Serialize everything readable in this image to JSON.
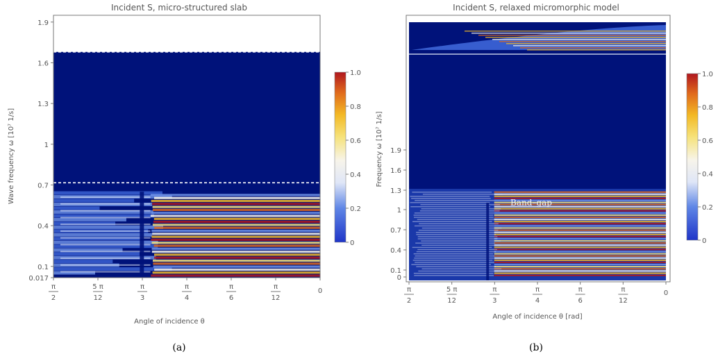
{
  "chart_data": [
    {
      "type": "heatmap",
      "title": "Incident S, micro-structured slab",
      "xlabel": "Angle of incidence θ",
      "ylabel": "Wave frequency  ω [10⁷ 1/s]",
      "caption": "(a)",
      "x_ticks": [
        {
          "num": "π",
          "den": "2",
          "value": 1.5708
        },
        {
          "num": "5 π",
          "den": "12",
          "value": 1.309
        },
        {
          "num": "π",
          "den": "3",
          "value": 1.0472
        },
        {
          "num": "π",
          "den": "4",
          "value": 0.7854
        },
        {
          "num": "π",
          "den": "6",
          "value": 0.5236
        },
        {
          "num": "π",
          "den": "12",
          "value": 0.2618
        },
        {
          "num": "0",
          "den": "",
          "value": 0
        }
      ],
      "xlim": [
        1.5708,
        0
      ],
      "y_ticks": [
        {
          "label": "0.017",
          "value": 0.017
        },
        {
          "label": "0.1",
          "value": 0.1
        },
        {
          "label": "0.4",
          "value": 0.4
        },
        {
          "label": "0.7",
          "value": 0.7
        },
        {
          "label": "1",
          "value": 1.0
        },
        {
          "label": "1.3",
          "value": 1.3
        },
        {
          "label": "1.6",
          "value": 1.6
        },
        {
          "label": "1.9",
          "value": 1.9
        }
      ],
      "ylim": [
        0.017,
        1.95
      ],
      "dashed_lines_y": [
        0.716,
        1.68
      ],
      "colorbar": {
        "min": 0,
        "max": 1,
        "ticks": [
          "0",
          "0.2",
          "0.4",
          "0.6",
          "0.8",
          "1.0"
        ]
      },
      "colors": {
        "background": "#00127a",
        "low": "#1a3dbf",
        "mid": "#f7f7f7",
        "high_mid": "#f3c21c",
        "high": "#b0171f"
      }
    },
    {
      "type": "heatmap",
      "title": "Incident S, relaxed micromorphic model",
      "xlabel": "Angle of incidence θ [rad]",
      "ylabel": "Frequency ω [10⁷ 1/s]",
      "caption": "(b)",
      "annotation": "Band–gap",
      "x_ticks": [
        {
          "num": "π",
          "den": "2",
          "value": 1.5708
        },
        {
          "num": "5 π",
          "den": "12",
          "value": 1.309
        },
        {
          "num": "π",
          "den": "3",
          "value": 1.0472
        },
        {
          "num": "π",
          "den": "4",
          "value": 0.7854
        },
        {
          "num": "π",
          "den": "6",
          "value": 0.5236
        },
        {
          "num": "π",
          "den": "12",
          "value": 0.2618
        },
        {
          "num": "0",
          "den": "",
          "value": 0
        }
      ],
      "xlim": [
        1.5708,
        0
      ],
      "y_ticks": [
        {
          "label": "0",
          "value": 0
        },
        {
          "label": "0.1",
          "value": 0.1
        },
        {
          "label": "0.4",
          "value": 0.4
        },
        {
          "label": "0.7",
          "value": 0.7
        },
        {
          "label": "1",
          "value": 1.0
        },
        {
          "label": "1.3",
          "value": 1.3
        },
        {
          "label": "1.6",
          "value": 1.6
        },
        {
          "label": "1.9",
          "value": 1.9
        }
      ],
      "colorbar": {
        "min": 0,
        "max": 1,
        "ticks": [
          "0",
          "0.2",
          "0.4",
          "0.6",
          "0.8",
          "1.0"
        ]
      },
      "colors": {
        "background": "#00127a",
        "low": "#1a3dbf",
        "mid": "#f7f7f7",
        "high_mid": "#f3c21c",
        "high": "#b0171f"
      }
    }
  ]
}
